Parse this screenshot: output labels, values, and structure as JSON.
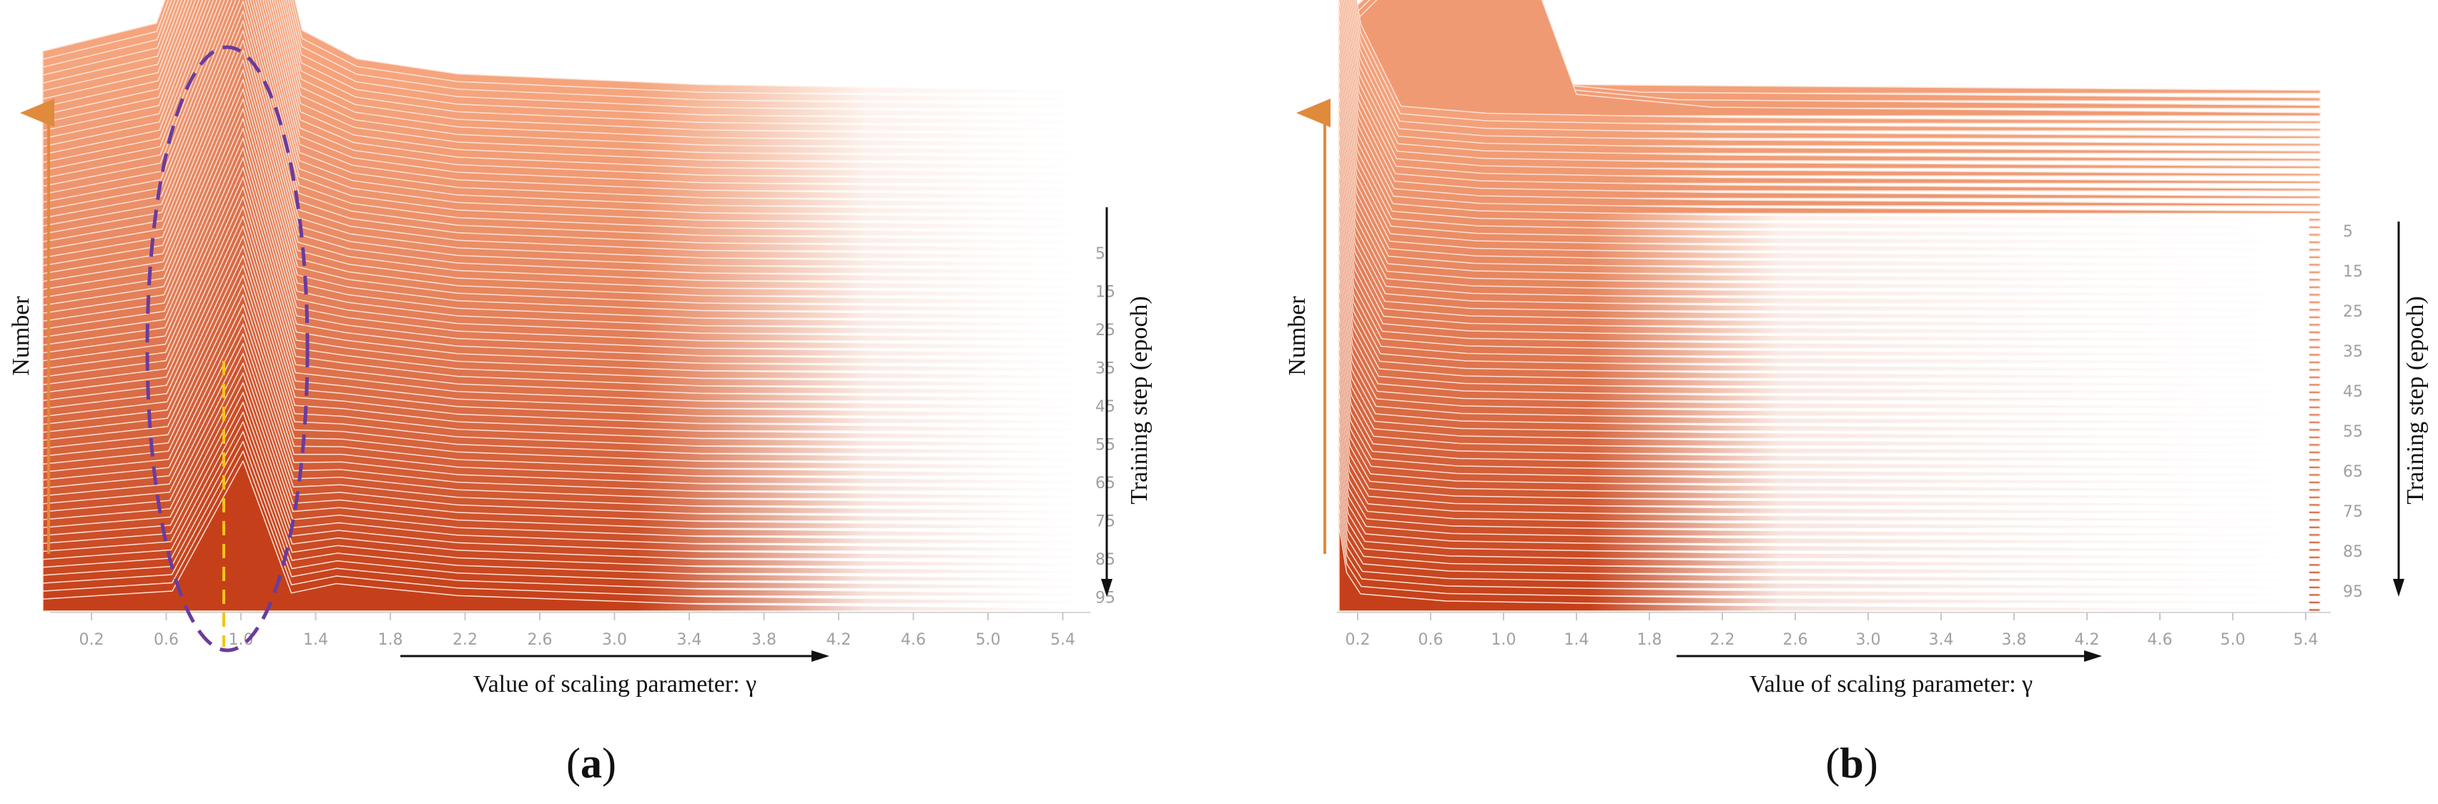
{
  "figure": {
    "colors": {
      "ridge_early": "#f5a57e",
      "ridge_late": "#c5401a",
      "ellipse": "#6a3c9c",
      "marker": "#f2c418",
      "axis_arrow": "#e08a3c",
      "tick_text": "#a0a0a0"
    }
  },
  "chart_data": [
    {
      "type": "area",
      "panel_label_prefix": "(",
      "panel_label_letter": "a",
      "panel_label_suffix": ")",
      "xlabel": "Value of scaling parameter: γ",
      "ylabel": "Number",
      "zlabel": "Training step (epoch)",
      "x_ticks": [
        "0.2",
        "0.6",
        "1.0",
        "1.4",
        "1.8",
        "2.2",
        "2.6",
        "3.0",
        "3.4",
        "3.8",
        "4.2",
        "4.6",
        "5.0",
        "5.4"
      ],
      "epoch_ticks": [
        "5",
        "15",
        "25",
        "35",
        "45",
        "55",
        "65",
        "75",
        "85",
        "95"
      ],
      "xlim": [
        0.2,
        5.4
      ],
      "epochs": [
        0,
        99
      ],
      "distribution": "single peak near γ = 1.0 that grows and sharpens over training",
      "peak_gamma": 1.0,
      "highlight": "dashed ellipse around the peak region, dashed vertical marker at γ ≈ 0.95"
    },
    {
      "type": "area",
      "panel_label_prefix": "(",
      "panel_label_letter": "b",
      "panel_label_suffix": ")",
      "xlabel": "Value of scaling parameter: γ",
      "ylabel": "Number",
      "zlabel": "Training step (epoch)",
      "x_ticks": [
        "0.2",
        "0.6",
        "1.0",
        "1.4",
        "1.8",
        "2.2",
        "2.6",
        "3.0",
        "3.4",
        "3.8",
        "4.2",
        "4.6",
        "5.0",
        "5.4"
      ],
      "epoch_ticks": [
        "5",
        "15",
        "25",
        "35",
        "45",
        "55",
        "65",
        "75",
        "85",
        "95"
      ],
      "xlim": [
        0.2,
        5.4
      ],
      "epochs": [
        0,
        99
      ],
      "distribution": "early epochs peak between γ 0.2 and 1.0; later epochs collapse toward γ ≈ 0",
      "early_peaks_gamma": [
        0.3,
        0.6,
        0.8,
        1.0
      ],
      "late_peak_gamma": 0.0
    }
  ]
}
